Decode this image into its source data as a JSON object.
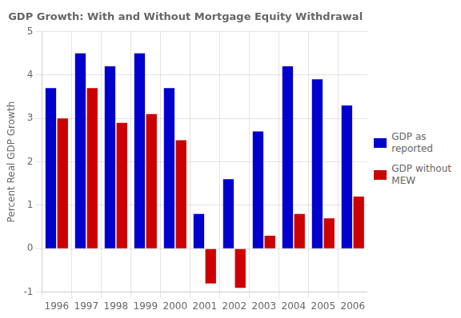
{
  "chart_data": {
    "type": "bar",
    "title": "GDP Growth: With and Without Mortgage Equity Withdrawal",
    "ylabel": "Percent Real GDP Growth",
    "categories": [
      "1996",
      "1997",
      "1998",
      "1999",
      "2000",
      "2001",
      "2002",
      "2003",
      "2004",
      "2005",
      "2006"
    ],
    "series": [
      {
        "name": "GDP as\nreported",
        "color": "#0000CC",
        "values": [
          3.7,
          4.5,
          4.2,
          4.5,
          3.7,
          0.8,
          1.6,
          2.7,
          4.2,
          3.9,
          3.3
        ]
      },
      {
        "name": "GDP without\nMEW",
        "color": "#CC0000",
        "values": [
          3.0,
          3.7,
          2.9,
          3.1,
          2.5,
          -0.8,
          -0.9,
          0.3,
          0.8,
          0.7,
          1.2
        ]
      }
    ],
    "ylim": [
      -1,
      5
    ],
    "yticks": [
      -1,
      0,
      1,
      2,
      3,
      4,
      5
    ],
    "grid": true,
    "legend": "right"
  }
}
